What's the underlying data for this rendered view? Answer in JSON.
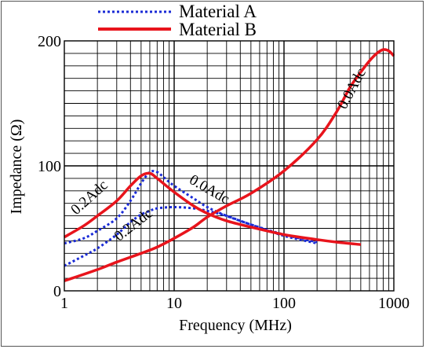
{
  "chart_data": {
    "type": "line",
    "xscale": "log",
    "xlim": [
      1,
      1000
    ],
    "ylim": [
      0,
      200
    ],
    "xlabel": "Frequency (MHz)",
    "ylabel": "Impedance (Ω)",
    "x_ticks": [
      1,
      10,
      100,
      1000
    ],
    "x_tick_labels": [
      "1",
      "10",
      "100",
      "1000"
    ],
    "y_ticks": [
      0,
      100,
      200
    ],
    "y_tick_labels": [
      "0",
      "100",
      "200"
    ],
    "grid": true,
    "legend": {
      "placement": "top",
      "entries": [
        {
          "label": "Material A",
          "style": "dotted",
          "color": "#1a2bd6"
        },
        {
          "label": "Material B",
          "style": "solid",
          "color": "#e8141c"
        }
      ]
    },
    "series": [
      {
        "name": "Material A",
        "condition": "0.2Adc",
        "style": "dotted",
        "color": "#1a2bd6",
        "x": [
          1,
          1.5,
          2,
          3,
          4,
          5,
          6,
          7,
          10,
          15,
          20,
          30,
          50,
          100,
          200
        ],
        "y": [
          20,
          28,
          34,
          45,
          55,
          61,
          64,
          66,
          67,
          66,
          64,
          60,
          53,
          45,
          39
        ]
      },
      {
        "name": "Material A",
        "condition": "0.0Adc",
        "style": "dotted",
        "color": "#1a2bd6",
        "x": [
          1,
          1.5,
          2,
          3,
          4,
          5,
          6,
          7,
          8,
          10,
          15,
          20,
          30,
          50,
          100,
          200
        ],
        "y": [
          38,
          42,
          48,
          58,
          72,
          86,
          95,
          95,
          91,
          84,
          74,
          67,
          60,
          53,
          44,
          38
        ]
      },
      {
        "name": "Material B",
        "condition": "0.2Adc",
        "style": "solid",
        "color": "#e8141c",
        "x": [
          1,
          1.5,
          2,
          3,
          4,
          5,
          6,
          7,
          10,
          15,
          20,
          30,
          50,
          100,
          200,
          300,
          500
        ],
        "y": [
          43,
          52,
          60,
          72,
          84,
          92,
          94,
          90,
          79,
          68,
          62,
          56,
          51,
          45,
          41,
          39,
          37
        ]
      },
      {
        "name": "Material B",
        "condition": "0.0Adc",
        "style": "solid",
        "color": "#e8141c",
        "x": [
          1,
          2,
          3,
          5,
          7,
          10,
          15,
          20,
          30,
          50,
          100,
          200,
          300,
          400,
          500,
          600,
          700,
          800,
          900,
          1000
        ],
        "y": [
          8,
          17,
          23,
          30,
          35,
          42,
          51,
          59,
          68,
          78,
          96,
          121,
          143,
          163,
          175,
          184,
          190,
          193,
          192,
          188
        ]
      }
    ],
    "annotations": [
      {
        "text": "0.2Adc",
        "series": "Material B",
        "near_x": 1.8,
        "near_y": 72
      },
      {
        "text": "0.2Adc",
        "series": "Material A",
        "near_x": 4.5,
        "near_y": 50
      },
      {
        "text": "0.0Adc",
        "series": "Material A",
        "near_x": 20,
        "near_y": 78
      },
      {
        "text": "0.0Adc",
        "series": "Material B",
        "near_x": 450,
        "near_y": 160
      }
    ]
  }
}
